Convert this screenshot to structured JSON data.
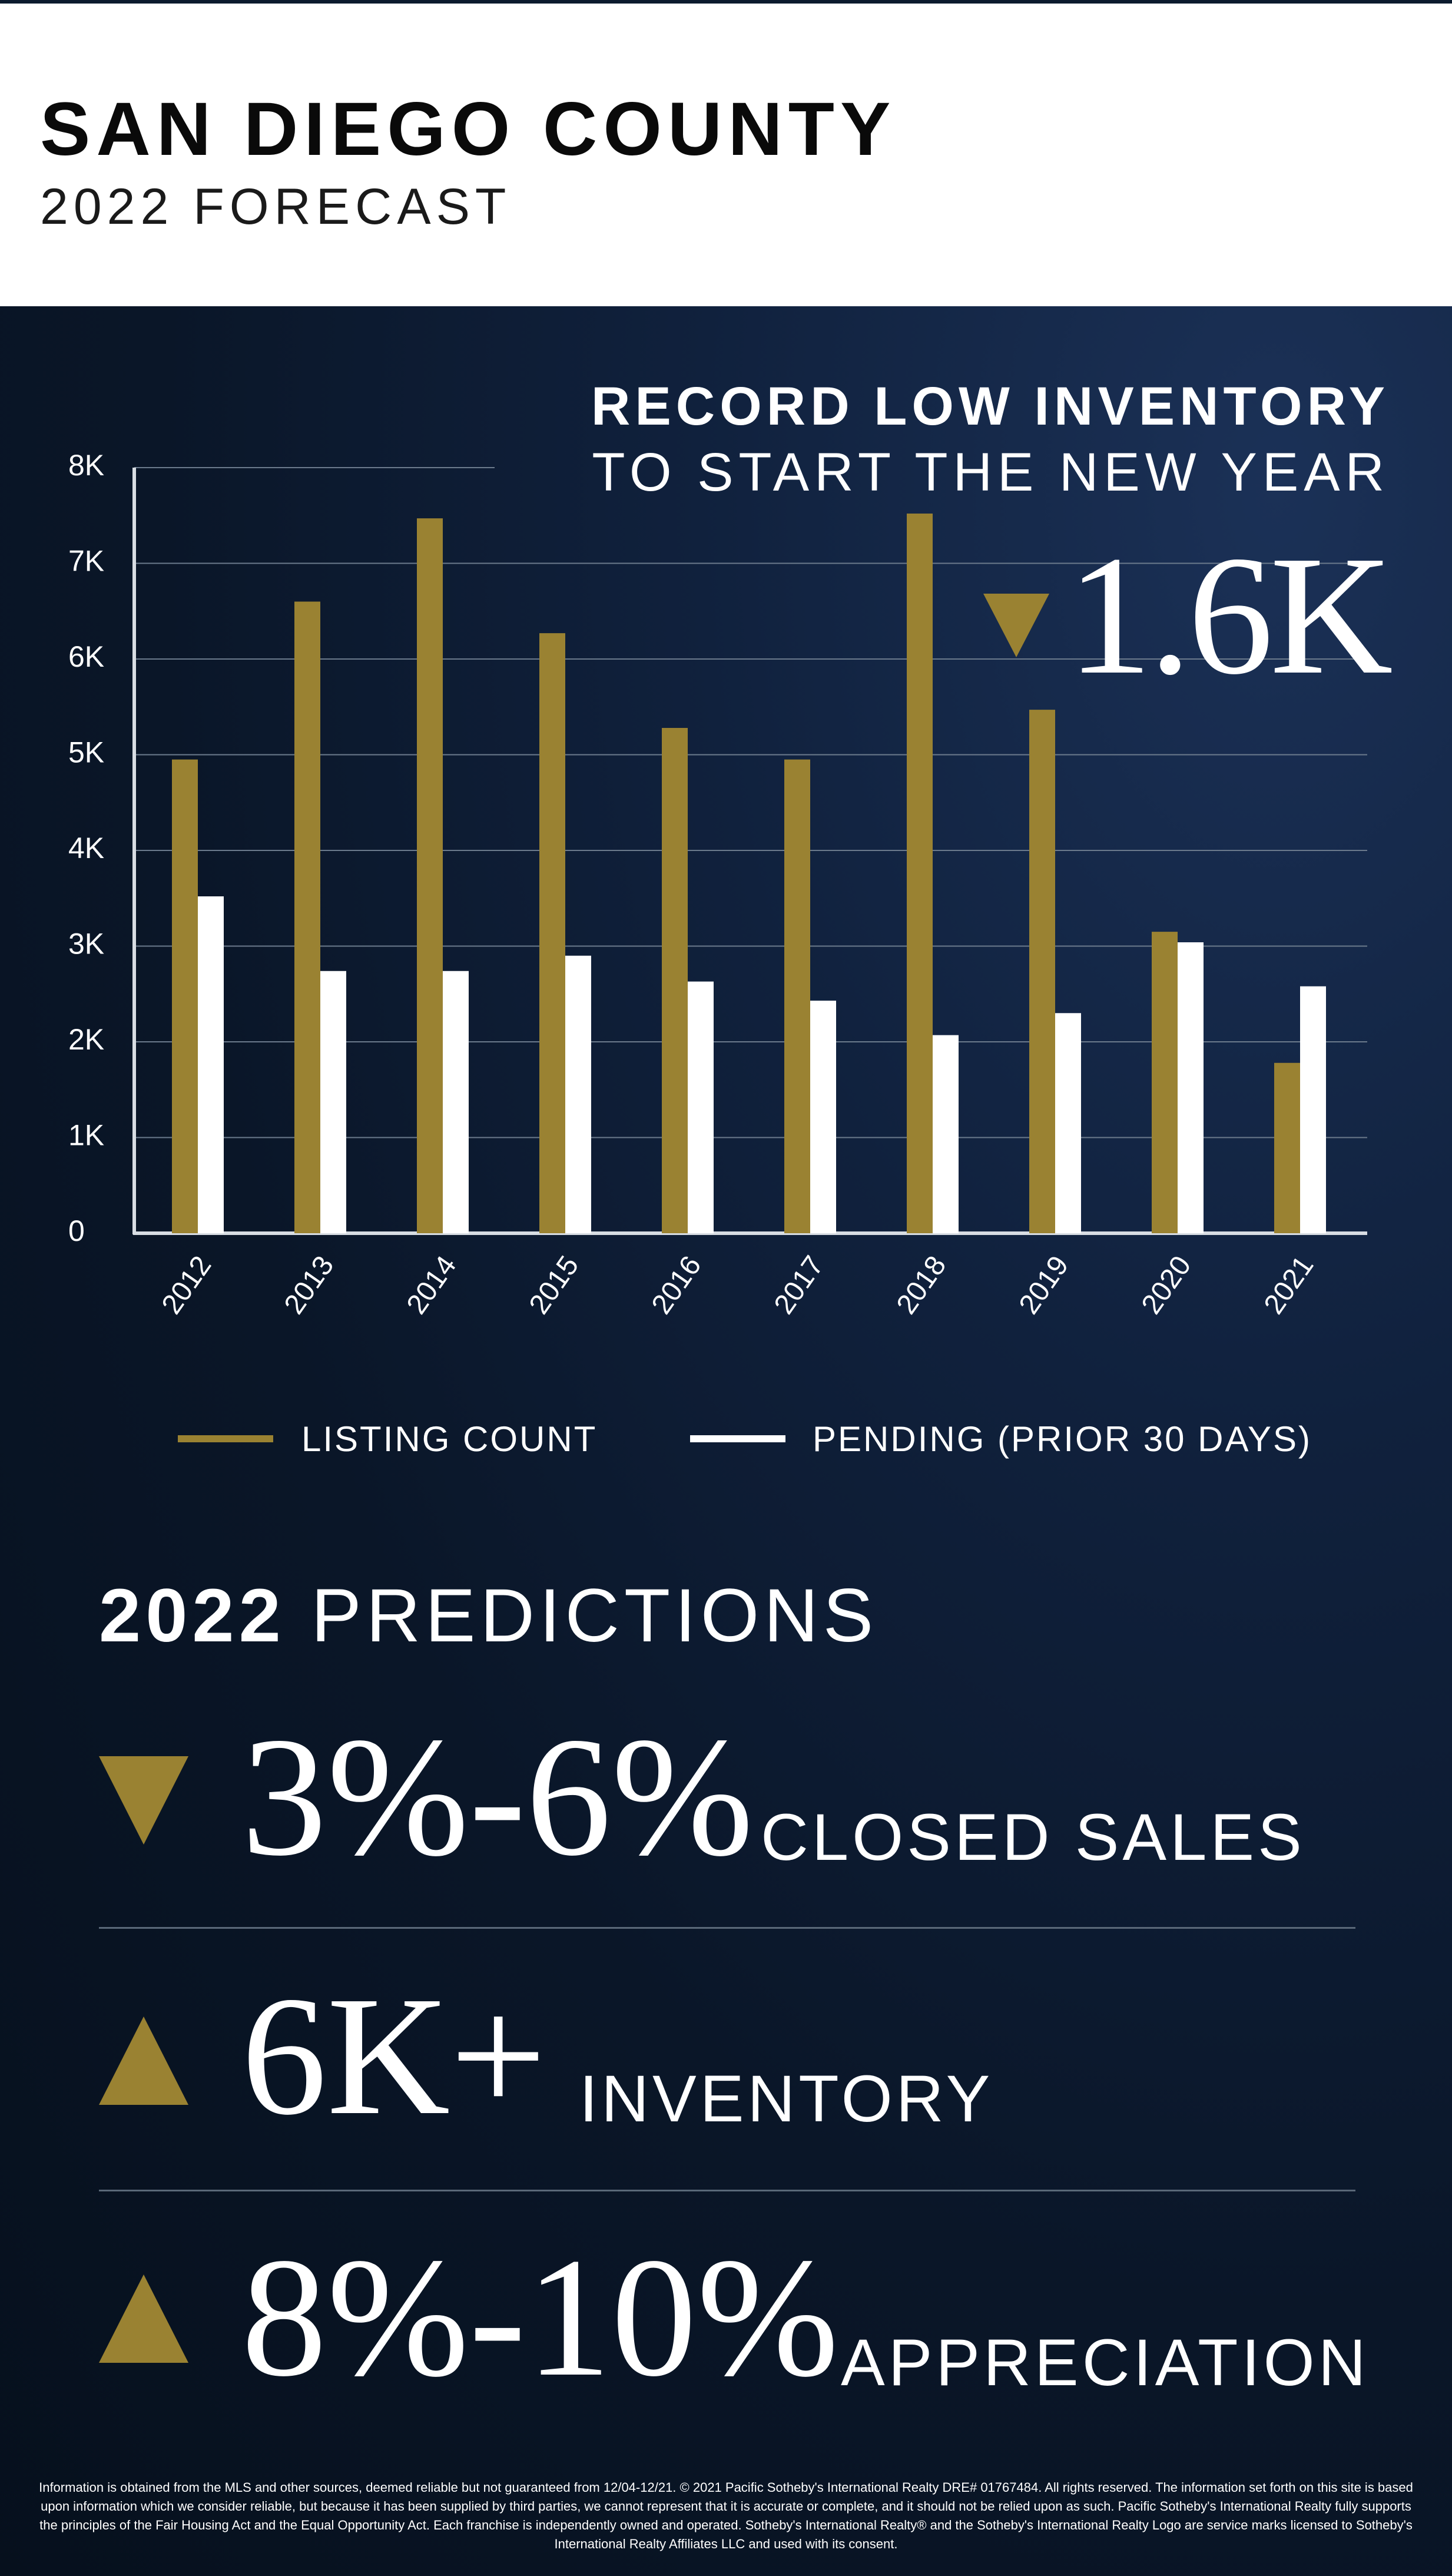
{
  "header": {
    "title": "SAN DIEGO COUNTY",
    "subtitle": "2022 FORECAST"
  },
  "headline": {
    "line1": "RECORD LOW INVENTORY",
    "line2": "TO START THE NEW YEAR",
    "stat": "1.6K",
    "stat_direction": "down-arrow"
  },
  "legend": {
    "listing_label": "LISTING COUNT",
    "pending_label": "PENDING (PRIOR 30 DAYS)"
  },
  "colors": {
    "gold": "#9a8232",
    "white": "#ffffff",
    "background": "#0a1628"
  },
  "chart_data": {
    "type": "bar",
    "categories": [
      "2012",
      "2013",
      "2014",
      "2015",
      "2016",
      "2017",
      "2018",
      "2019",
      "2020",
      "2021"
    ],
    "series": [
      {
        "name": "LISTING COUNT",
        "color": "#9a8232",
        "values": [
          4950,
          6600,
          7470,
          6270,
          5280,
          4950,
          7520,
          5470,
          3150,
          1780
        ]
      },
      {
        "name": "PENDING (PRIOR 30 DAYS)",
        "color": "#ffffff",
        "values": [
          3520,
          2740,
          2740,
          2900,
          2630,
          2430,
          2070,
          2300,
          3040,
          2580
        ]
      }
    ],
    "yticks": [
      "0",
      "1K",
      "2K",
      "3K",
      "4K",
      "5K",
      "6K",
      "7K",
      "8K"
    ],
    "ylim": [
      0,
      8000
    ],
    "grid": true,
    "legend_position": "bottom"
  },
  "predictions": {
    "title_bold": "2022",
    "title_rest": " PREDICTIONS",
    "items": [
      {
        "direction": "down-arrow",
        "value": "3%-6%",
        "label": "CLOSED SALES"
      },
      {
        "direction": "up-arrow",
        "value": "6K+",
        "label": "INVENTORY"
      },
      {
        "direction": "up-arrow",
        "value": "8%-10%",
        "label": "APPRECIATION"
      }
    ]
  },
  "disclaimer": "Information is obtained from the MLS and other sources, deemed reliable but not guaranteed from 12/04-12/21. © 2021 Pacific Sotheby's International Realty DRE# 01767484. All rights reserved. The information set forth on this site is based upon information which we consider reliable, but because it has been supplied by third parties, we cannot represent that it is accurate or complete, and it should not be relied upon as such. Pacific Sotheby's International Realty fully supports the principles of the Fair Housing Act and the Equal Opportunity Act. Each franchise is independently owned and operated. Sotheby's International Realty® and the Sotheby's International Realty Logo are service marks licensed to Sotheby's International Realty Affiliates LLC and used with its consent."
}
